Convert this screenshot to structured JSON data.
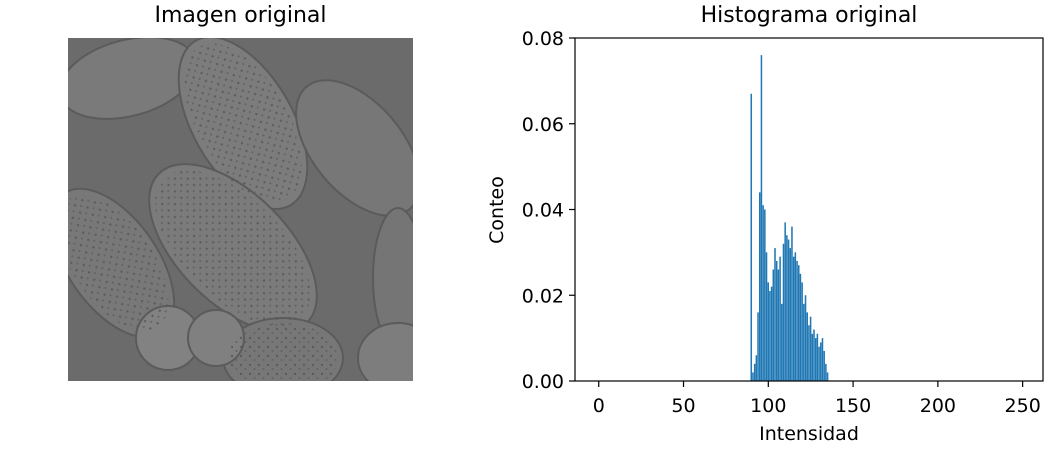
{
  "image_panel": {
    "title": "Imagen original",
    "description_icon": "grayscale-pollen-image"
  },
  "chart_data": {
    "type": "bar",
    "title": "Histograma original",
    "xlabel": "Intensidad",
    "ylabel": "Conteo",
    "xlim": [
      -14,
      262
    ],
    "ylim": [
      0,
      0.08
    ],
    "xticks": [
      0,
      50,
      100,
      150,
      200,
      250
    ],
    "yticks": [
      0.0,
      0.02,
      0.04,
      0.06,
      0.08
    ],
    "ytick_labels": [
      "0.00",
      "0.02",
      "0.04",
      "0.06",
      "0.08"
    ],
    "bar_color": "#1f77b4",
    "x": [
      90,
      91,
      92,
      93,
      94,
      95,
      96,
      97,
      98,
      99,
      100,
      101,
      102,
      103,
      104,
      105,
      106,
      107,
      108,
      109,
      110,
      111,
      112,
      113,
      114,
      115,
      116,
      117,
      118,
      119,
      120,
      121,
      122,
      123,
      124,
      125,
      126,
      127,
      128,
      129,
      130,
      131,
      132,
      133,
      134,
      135
    ],
    "values": [
      0.067,
      0.002,
      0.004,
      0.006,
      0.016,
      0.044,
      0.076,
      0.041,
      0.04,
      0.03,
      0.023,
      0.021,
      0.022,
      0.026,
      0.031,
      0.028,
      0.026,
      0.029,
      0.018,
      0.032,
      0.037,
      0.034,
      0.033,
      0.031,
      0.036,
      0.029,
      0.03,
      0.028,
      0.027,
      0.025,
      0.023,
      0.018,
      0.02,
      0.016,
      0.013,
      0.015,
      0.011,
      0.012,
      0.01,
      0.011,
      0.008,
      0.009,
      0.01,
      0.007,
      0.004,
      0.002
    ]
  }
}
